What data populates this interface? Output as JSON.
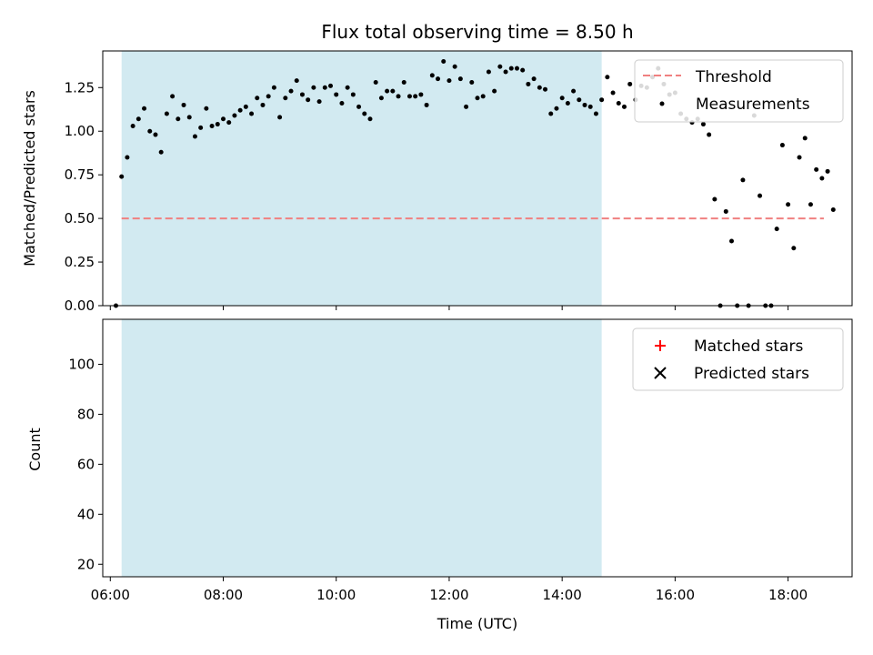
{
  "chart_data": {
    "title": "Flux total observing time = 8.50 h",
    "xlabel": "Time (UTC)",
    "x_ticks": [
      "06:00",
      "08:00",
      "10:00",
      "12:00",
      "14:00",
      "16:00",
      "18:00"
    ],
    "x_range": [
      "05:52",
      "19:08"
    ],
    "observing_window": {
      "start": "06:12",
      "end": "14:42",
      "color": "#add8e6"
    },
    "panels": [
      {
        "type": "scatter",
        "ylabel": "Matched/Predicted stars",
        "ylim": [
          0,
          1.46
        ],
        "y_ticks": [
          "0.00",
          "0.25",
          "0.50",
          "0.75",
          "1.00",
          "1.25"
        ],
        "threshold": {
          "name": "Threshold",
          "value": 0.5,
          "x_start": "06:12",
          "x_end": "18:38",
          "color": "#f08080"
        },
        "legend": [
          "Threshold",
          "Measurements"
        ],
        "series": [
          {
            "name": "Measurements",
            "color": "#000000",
            "points": [
              [
                "06:06",
                0.0
              ],
              [
                "06:12",
                0.74
              ],
              [
                "06:18",
                0.85
              ],
              [
                "06:24",
                1.03
              ],
              [
                "06:30",
                1.07
              ],
              [
                "06:36",
                1.13
              ],
              [
                "06:42",
                1.0
              ],
              [
                "06:48",
                0.98
              ],
              [
                "06:54",
                0.88
              ],
              [
                "07:00",
                1.1
              ],
              [
                "07:06",
                1.2
              ],
              [
                "07:12",
                1.07
              ],
              [
                "07:18",
                1.15
              ],
              [
                "07:24",
                1.08
              ],
              [
                "07:30",
                0.97
              ],
              [
                "07:36",
                1.02
              ],
              [
                "07:42",
                1.13
              ],
              [
                "07:48",
                1.03
              ],
              [
                "07:54",
                1.04
              ],
              [
                "08:00",
                1.07
              ],
              [
                "08:06",
                1.05
              ],
              [
                "08:12",
                1.09
              ],
              [
                "08:18",
                1.12
              ],
              [
                "08:24",
                1.14
              ],
              [
                "08:30",
                1.1
              ],
              [
                "08:36",
                1.19
              ],
              [
                "08:42",
                1.15
              ],
              [
                "08:48",
                1.2
              ],
              [
                "08:54",
                1.25
              ],
              [
                "09:00",
                1.08
              ],
              [
                "09:06",
                1.19
              ],
              [
                "09:12",
                1.23
              ],
              [
                "09:18",
                1.29
              ],
              [
                "09:24",
                1.21
              ],
              [
                "09:30",
                1.18
              ],
              [
                "09:36",
                1.25
              ],
              [
                "09:42",
                1.17
              ],
              [
                "09:48",
                1.25
              ],
              [
                "09:54",
                1.26
              ],
              [
                "10:00",
                1.21
              ],
              [
                "10:06",
                1.16
              ],
              [
                "10:12",
                1.25
              ],
              [
                "10:18",
                1.21
              ],
              [
                "10:24",
                1.14
              ],
              [
                "10:30",
                1.1
              ],
              [
                "10:36",
                1.07
              ],
              [
                "10:42",
                1.28
              ],
              [
                "10:48",
                1.19
              ],
              [
                "10:54",
                1.23
              ],
              [
                "11:00",
                1.23
              ],
              [
                "11:06",
                1.2
              ],
              [
                "11:12",
                1.28
              ],
              [
                "11:18",
                1.2
              ],
              [
                "11:24",
                1.2
              ],
              [
                "11:30",
                1.21
              ],
              [
                "11:36",
                1.15
              ],
              [
                "11:42",
                1.32
              ],
              [
                "11:48",
                1.3
              ],
              [
                "11:54",
                1.4
              ],
              [
                "12:00",
                1.29
              ],
              [
                "12:06",
                1.37
              ],
              [
                "12:12",
                1.3
              ],
              [
                "12:18",
                1.14
              ],
              [
                "12:24",
                1.28
              ],
              [
                "12:30",
                1.19
              ],
              [
                "12:36",
                1.2
              ],
              [
                "12:42",
                1.34
              ],
              [
                "12:48",
                1.23
              ],
              [
                "12:54",
                1.37
              ],
              [
                "13:00",
                1.34
              ],
              [
                "13:06",
                1.36
              ],
              [
                "13:12",
                1.36
              ],
              [
                "13:18",
                1.35
              ],
              [
                "13:24",
                1.27
              ],
              [
                "13:30",
                1.3
              ],
              [
                "13:36",
                1.25
              ],
              [
                "13:42",
                1.24
              ],
              [
                "13:48",
                1.1
              ],
              [
                "13:54",
                1.13
              ],
              [
                "14:00",
                1.19
              ],
              [
                "14:06",
                1.16
              ],
              [
                "14:12",
                1.23
              ],
              [
                "14:18",
                1.18
              ],
              [
                "14:24",
                1.15
              ],
              [
                "14:30",
                1.14
              ],
              [
                "14:36",
                1.1
              ],
              [
                "14:42",
                1.18
              ],
              [
                "14:48",
                1.31
              ],
              [
                "14:54",
                1.22
              ],
              [
                "15:00",
                1.16
              ],
              [
                "15:06",
                1.14
              ],
              [
                "15:12",
                1.27
              ],
              [
                "15:18",
                1.18
              ],
              [
                "15:24",
                1.26
              ],
              [
                "15:30",
                1.25
              ],
              [
                "15:36",
                1.31
              ],
              [
                "15:42",
                1.36
              ],
              [
                "15:48",
                1.27
              ],
              [
                "15:54",
                1.21
              ],
              [
                "16:00",
                1.22
              ],
              [
                "16:06",
                1.1
              ],
              [
                "16:12",
                1.07
              ],
              [
                "16:18",
                1.05
              ],
              [
                "16:24",
                1.07
              ],
              [
                "16:30",
                1.04
              ],
              [
                "16:36",
                0.98
              ],
              [
                "16:42",
                0.61
              ],
              [
                "16:48",
                0.0
              ],
              [
                "16:54",
                0.54
              ],
              [
                "17:00",
                0.37
              ],
              [
                "17:06",
                0.0
              ],
              [
                "17:12",
                0.72
              ],
              [
                "17:18",
                0.0
              ],
              [
                "17:24",
                1.09
              ],
              [
                "17:30",
                0.63
              ],
              [
                "17:36",
                0.0
              ],
              [
                "17:42",
                0.0
              ],
              [
                "17:48",
                0.44
              ],
              [
                "17:54",
                0.92
              ],
              [
                "18:00",
                0.58
              ],
              [
                "18:06",
                0.33
              ],
              [
                "18:12",
                0.85
              ],
              [
                "18:18",
                0.96
              ],
              [
                "18:24",
                0.58
              ],
              [
                "18:30",
                0.78
              ],
              [
                "18:36",
                0.73
              ],
              [
                "18:42",
                0.77
              ],
              [
                "18:48",
                0.55
              ]
            ]
          }
        ]
      },
      {
        "type": "scatter",
        "ylabel": "Count",
        "ylim": [
          15,
          118
        ],
        "y_ticks": [
          "20",
          "40",
          "60",
          "80",
          "100"
        ],
        "legend": [
          "Matched stars",
          "Predicted stars"
        ],
        "series": [
          {
            "name": "Matched stars",
            "marker": "plus",
            "color": "#ff0000",
            "points": []
          },
          {
            "name": "Predicted stars",
            "marker": "x",
            "color": "#000000",
            "points": []
          }
        ]
      }
    ]
  }
}
